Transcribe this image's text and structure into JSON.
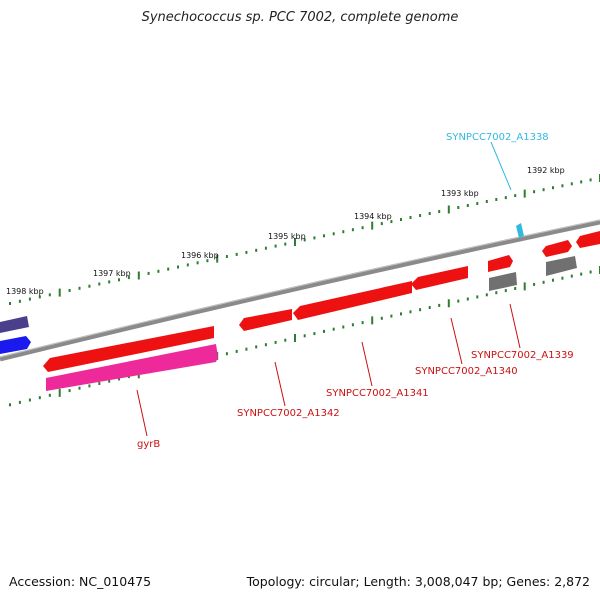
{
  "title": "Synechococcus sp. PCC 7002, complete genome",
  "footer": {
    "accession": "Accession: NC_010475",
    "summary": "Topology: circular; Length: 3,008,047 bp; Genes: 2,872"
  },
  "colors": {
    "backbone": "#8a8a8a",
    "tick": "#2f7d2f",
    "cds_forward": "#ee1111",
    "cds_reverse_gray": "#707070",
    "gyrB": "#ee2a9a",
    "highlight_label": "#33b9e0",
    "gene_label": "#cc1111"
  },
  "ticks": [
    {
      "label": "1398 kbp"
    },
    {
      "label": "1397 kbp"
    },
    {
      "label": "1396 kbp"
    },
    {
      "label": "1395 kbp"
    },
    {
      "label": "1394 kbp"
    },
    {
      "label": "1393 kbp"
    },
    {
      "label": "1392 kbp"
    }
  ],
  "genes": [
    {
      "name": "SYNPCC7002_A1338",
      "icon": "small-arrow-icon"
    },
    {
      "name": "SYNPCC7002_A1339",
      "icon": "gene-arrow-icon"
    },
    {
      "name": "SYNPCC7002_A1340",
      "icon": "gene-arrow-icon"
    },
    {
      "name": "SYNPCC7002_A1341",
      "icon": "gene-arrow-icon"
    },
    {
      "name": "SYNPCC7002_A1342",
      "icon": "gene-arrow-icon"
    },
    {
      "name": "gyrB",
      "icon": "gene-arrow-icon"
    }
  ]
}
